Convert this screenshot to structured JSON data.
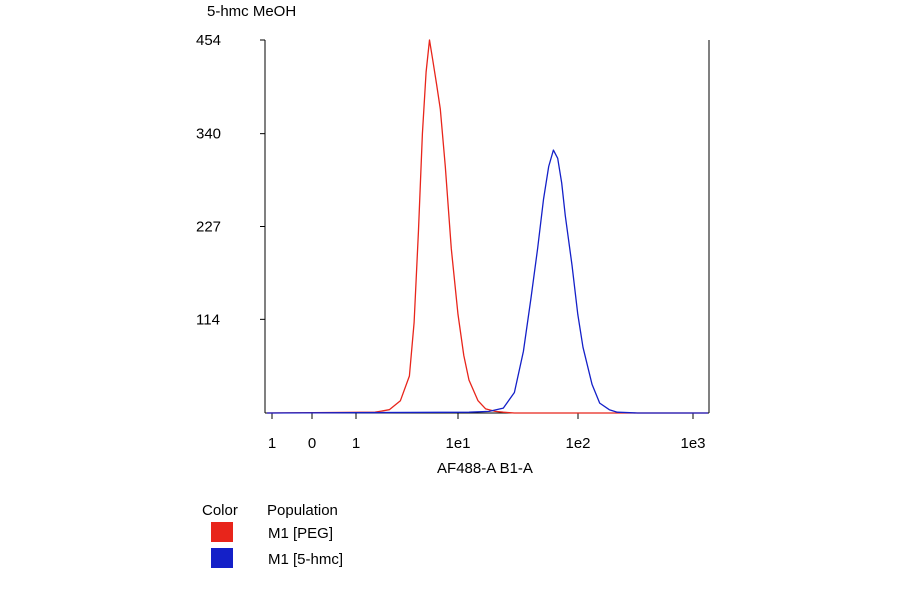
{
  "chart_data": {
    "type": "line",
    "title": "5-hmc MeOH",
    "xlabel": "AF488-A B1-A",
    "ylabel": "",
    "x_scale": "log",
    "x_tick_labels": [
      "1",
      "0",
      "1",
      "1e1",
      "1e2",
      "1e3"
    ],
    "y_tick_labels": [
      "454",
      "340",
      "227",
      "114"
    ],
    "y_tick_values": [
      454,
      340,
      227,
      114
    ],
    "ylim": [
      0,
      454
    ],
    "legend": {
      "placement": "bottom-left",
      "color_header": "Color",
      "population_header": "Population"
    },
    "series": [
      {
        "name": "M1 [PEG]",
        "color": "#e8251b",
        "x": [
          1,
          1.5,
          2,
          2.5,
          3,
          3.3,
          3.6,
          3.9,
          4.2,
          4.5,
          4.8,
          5.2,
          5.6,
          6.2,
          7,
          8,
          9,
          10,
          12,
          14,
          17,
          20,
          25,
          30
        ],
        "y": [
          0,
          1,
          4,
          15,
          45,
          110,
          220,
          340,
          415,
          454,
          430,
          400,
          370,
          300,
          200,
          120,
          70,
          40,
          15,
          5,
          2,
          1,
          0,
          0
        ]
      },
      {
        "name": "M1 [5-hmc]",
        "color": "#1420c8",
        "x": [
          1,
          10,
          15,
          20,
          25,
          30,
          35,
          40,
          45,
          50,
          55,
          60,
          65,
          70,
          80,
          90,
          100,
          120,
          140,
          170,
          200,
          300,
          500,
          1000
        ],
        "y": [
          0,
          1,
          2,
          6,
          25,
          75,
          140,
          200,
          260,
          300,
          320,
          310,
          280,
          240,
          180,
          120,
          80,
          35,
          12,
          4,
          1,
          0,
          0,
          0
        ]
      }
    ]
  }
}
